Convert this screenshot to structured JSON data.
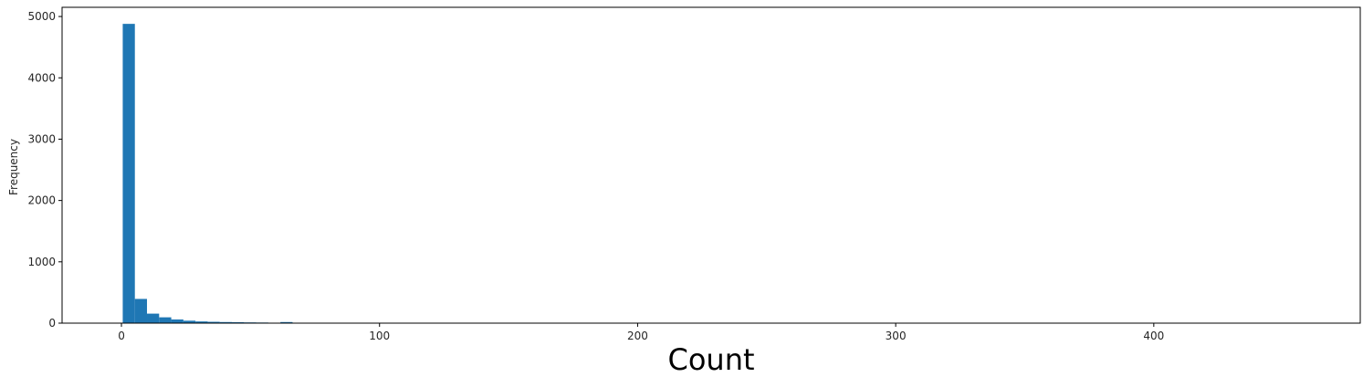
{
  "chart_data": {
    "type": "bar",
    "title": "",
    "xlabel": "Count",
    "ylabel": "Frequency",
    "xlim": [
      -23,
      480
    ],
    "ylim": [
      0,
      5150
    ],
    "xticks": [
      0,
      100,
      200,
      300,
      400
    ],
    "xtick_labels": [
      "0",
      "100",
      "200",
      "300",
      "400"
    ],
    "yticks": [
      0,
      1000,
      2000,
      3000,
      4000,
      5000
    ],
    "ytick_labels": [
      "0",
      "1000",
      "2000",
      "3000",
      "4000",
      "5000"
    ],
    "grid": false,
    "bar_color": "#1f77b4",
    "bins": [
      {
        "x0": 0.5,
        "x1": 5.2,
        "value": 4880
      },
      {
        "x0": 5.2,
        "x1": 9.9,
        "value": 395
      },
      {
        "x0": 9.9,
        "x1": 14.6,
        "value": 155
      },
      {
        "x0": 14.6,
        "x1": 19.3,
        "value": 95
      },
      {
        "x0": 19.3,
        "x1": 24.0,
        "value": 60
      },
      {
        "x0": 24.0,
        "x1": 28.7,
        "value": 40
      },
      {
        "x0": 28.7,
        "x1": 33.4,
        "value": 28
      },
      {
        "x0": 33.4,
        "x1": 38.1,
        "value": 22
      },
      {
        "x0": 38.1,
        "x1": 42.8,
        "value": 18
      },
      {
        "x0": 42.8,
        "x1": 47.5,
        "value": 15
      },
      {
        "x0": 47.5,
        "x1": 52.2,
        "value": 12
      },
      {
        "x0": 52.2,
        "x1": 56.9,
        "value": 10
      },
      {
        "x0": 56.9,
        "x1": 61.6,
        "value": 5
      },
      {
        "x0": 61.6,
        "x1": 66.3,
        "value": 18
      },
      {
        "x0": 66.3,
        "x1": 71.0,
        "value": 4
      },
      {
        "x0": 71.0,
        "x1": 75.7,
        "value": 3
      },
      {
        "x0": 75.7,
        "x1": 80.4,
        "value": 2
      },
      {
        "x0": 80.4,
        "x1": 85.1,
        "value": 2
      },
      {
        "x0": 85.1,
        "x1": 89.8,
        "value": 1
      },
      {
        "x0": 89.8,
        "x1": 94.5,
        "value": 1
      },
      {
        "x0": 94.5,
        "x1": 99.2,
        "value": 1
      }
    ]
  }
}
